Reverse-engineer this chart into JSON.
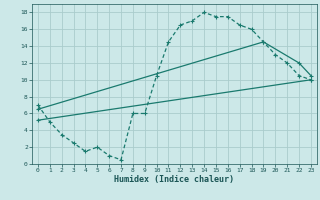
{
  "xlabel": "Humidex (Indice chaleur)",
  "bg_color": "#cce8e8",
  "grid_color": "#aacccc",
  "line_color": "#1a7a6e",
  "curve1_x": [
    0,
    1,
    2,
    3,
    4,
    5,
    6,
    7,
    8,
    9,
    10,
    11,
    12,
    13,
    14,
    15,
    16,
    17,
    18,
    19,
    20,
    21,
    22,
    23
  ],
  "curve1_y": [
    7.0,
    5.0,
    3.5,
    2.5,
    1.5,
    2.0,
    1.0,
    0.5,
    6.0,
    6.0,
    10.5,
    14.5,
    16.5,
    17.0,
    18.0,
    17.5,
    17.5,
    16.5,
    16.0,
    14.5,
    13.0,
    12.0,
    10.5,
    10.0
  ],
  "line2_x": [
    0,
    23
  ],
  "line2_y": [
    5.2,
    10.0
  ],
  "line3_x": [
    0,
    19,
    22,
    23
  ],
  "line3_y": [
    6.5,
    14.5,
    12.0,
    10.5
  ],
  "xlim": [
    -0.5,
    23.5
  ],
  "ylim": [
    0,
    19
  ],
  "ytick_vals": [
    0,
    2,
    4,
    6,
    8,
    10,
    12,
    14,
    16,
    18
  ],
  "xtick_vals": [
    0,
    1,
    2,
    3,
    4,
    5,
    6,
    7,
    8,
    9,
    10,
    11,
    12,
    13,
    14,
    15,
    16,
    17,
    18,
    19,
    20,
    21,
    22,
    23
  ]
}
